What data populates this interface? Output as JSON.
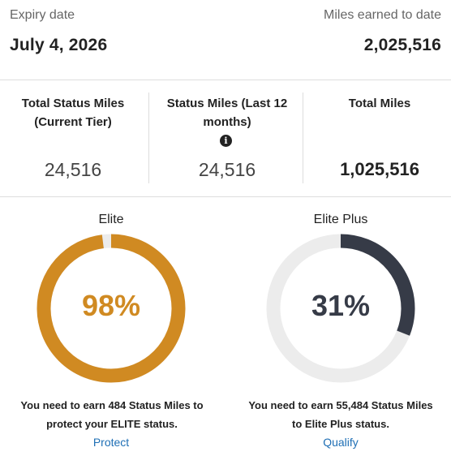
{
  "expiry": {
    "label": "Expiry date",
    "value": "July 4, 2026"
  },
  "earned": {
    "label": "Miles earned to date",
    "value": "2,025,516"
  },
  "stats": [
    {
      "title": "Total Status Miles (Current Tier)",
      "value": "24,516"
    },
    {
      "title": "Status Miles (Last 12 months)",
      "value": "24,516",
      "icon": "info-icon"
    },
    {
      "title": "Total Miles",
      "value": "1,025,516"
    }
  ],
  "tiers": [
    {
      "name": "Elite",
      "percent": 98,
      "percent_label": "98%",
      "color": "#d08a22",
      "note_line1": "You need to earn 484 Status Miles to",
      "note_line2": "protect your ELITE status.",
      "action": "Protect"
    },
    {
      "name": "Elite Plus",
      "percent": 31,
      "percent_label": "31%",
      "color": "#363b47",
      "note_line1": "You need to earn 55,484 Status Miles",
      "note_line2": "to Elite Plus status.",
      "action": "Qualify"
    }
  ],
  "colors": {
    "track": "#ececec",
    "link": "#1f6fb5",
    "divider": "#dddddd"
  }
}
